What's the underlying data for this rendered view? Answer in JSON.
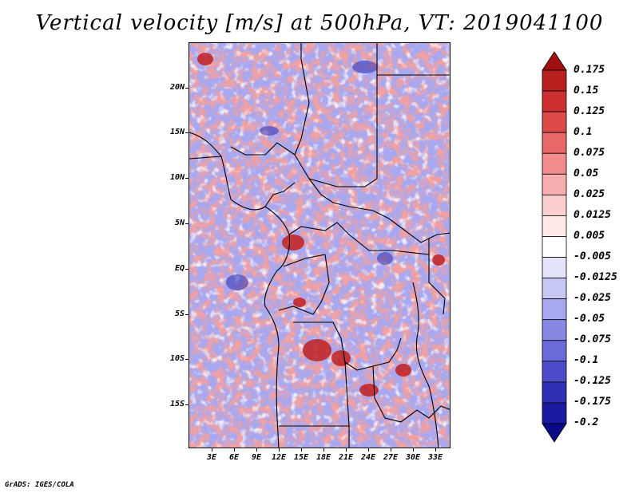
{
  "title": "Vertical velocity [m/s] at 500hPa, VT: 2019041100",
  "credit": "GrADS: IGES/COLA",
  "map": {
    "lat_labels": [
      "20N",
      "15N",
      "10N",
      "5N",
      "EQ",
      "5S",
      "10S",
      "15S"
    ],
    "lon_labels": [
      "3E",
      "6E",
      "9E",
      "12E",
      "15E",
      "18E",
      "21E",
      "24E",
      "27E",
      "30E",
      "33E"
    ],
    "land_color": "#a8a8f0",
    "border_color": "#000000"
  },
  "colorbar": {
    "labels": [
      "0.175",
      "0.15",
      "0.125",
      "0.1",
      "0.075",
      "0.05",
      "0.025",
      "0.0125",
      "0.005",
      "-0.005",
      "-0.0125",
      "-0.025",
      "-0.05",
      "-0.075",
      "-0.1",
      "-0.125",
      "-0.175",
      "-0.2"
    ],
    "colors": [
      "#a01010",
      "#b82020",
      "#cc3030",
      "#dd4a4a",
      "#e86868",
      "#f08c8c",
      "#f6aeae",
      "#fbcfcf",
      "#fee8e8",
      "#ffffff",
      "#e4e4fb",
      "#c8c8f5",
      "#a8a8ee",
      "#8888e4",
      "#6a6ad8",
      "#4c4cc8",
      "#3030b4",
      "#1a1aa0",
      "#0a0a88"
    ]
  }
}
